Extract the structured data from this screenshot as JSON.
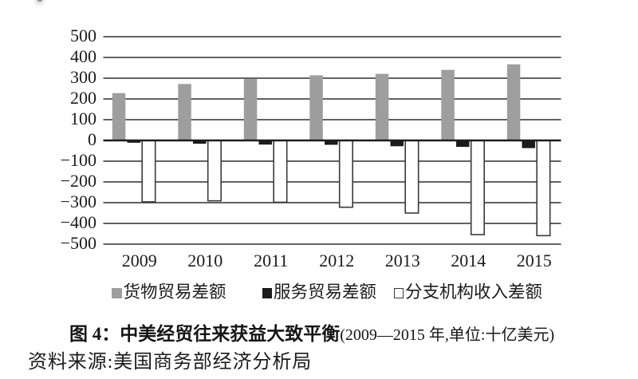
{
  "chart_data": {
    "type": "bar",
    "categories": [
      "2009",
      "2010",
      "2011",
      "2012",
      "2013",
      "2014",
      "2015"
    ],
    "series": [
      {
        "name": "货物贸易差额",
        "color": "#9e9e9e",
        "values": [
          228,
          272,
          296,
          314,
          321,
          340,
          367
        ]
      },
      {
        "name": "服务贸易差额",
        "color": "#1b1b1b",
        "values": [
          -11,
          -16,
          -20,
          -21,
          -28,
          -31,
          -37
        ]
      },
      {
        "name": "分支机构收入差额",
        "color": "#ffffff",
        "values": [
          -296,
          -291,
          -298,
          -322,
          -350,
          -454,
          -459
        ]
      }
    ],
    "ylim": [
      -500,
      500
    ],
    "ytick_step": 100,
    "ytick_labels": [
      "500",
      "400",
      "300",
      "200",
      "100",
      "0",
      "−100",
      "−200",
      "−300",
      "−400",
      "−500"
    ],
    "grid": true,
    "gridline_color": "#2f2f2f",
    "zero_line_color": "#1d1d1d",
    "legend_position": "bottom",
    "title": "图 4：中美经贸往来获益大致平衡(2009—2015 年,单位:十亿美元)"
  },
  "legend": {
    "items": [
      {
        "label": "货物贸易差额",
        "marker": "gray-filled-square"
      },
      {
        "label": "服务贸易差额",
        "marker": "black-filled-square"
      },
      {
        "label": "分支机构收入差额",
        "marker": "white-outlined-square"
      }
    ]
  },
  "caption": {
    "bold": "图 4：中美经贸往来获益大致平衡",
    "paren": "(2009—2015 年,单位:十亿美元)"
  },
  "source_note": "资料来源:美国商务部经济分析局"
}
